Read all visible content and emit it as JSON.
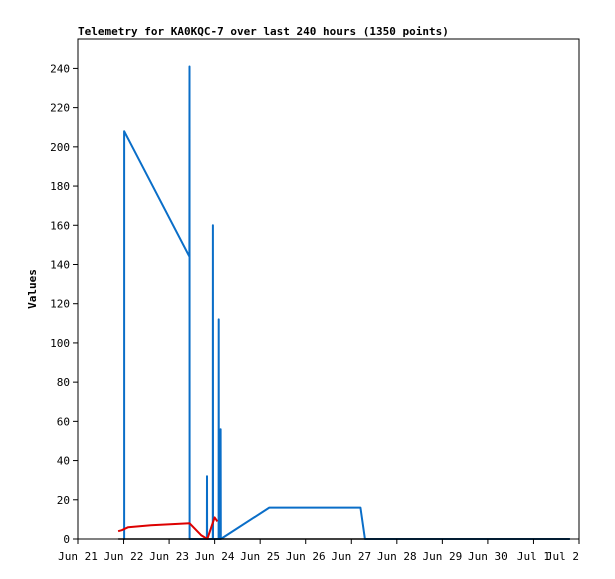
{
  "chart_data": {
    "type": "line",
    "title": "Telemetry for KA0KQC-7 over last 240 hours (1350 points)",
    "xlabel": "",
    "ylabel": "Values",
    "x_unit": "days (Jun 21 = 0)",
    "xlim": [
      "Jun 21",
      "Jul 2"
    ],
    "ylim": [
      0,
      255
    ],
    "x_tick_labels": [
      "Jun 21",
      "Jun 22",
      "Jun 23",
      "Jun 24",
      "Jun 25",
      "Jun 26",
      "Jun 27",
      "Jun 28",
      "Jun 29",
      "Jun 30",
      "Jul 1",
      "Jul 2"
    ],
    "y_ticks": [
      0,
      20,
      40,
      60,
      80,
      100,
      120,
      140,
      160,
      180,
      200,
      220,
      240
    ],
    "grid": false,
    "legend": "none",
    "series": [
      {
        "color": "#0a6ec8",
        "points": [
          [
            "Jun 22 00:00",
            0
          ],
          [
            "Jun 22 00:16",
            0
          ],
          [
            "Jun 22 00:19",
            208
          ],
          [
            "Jun 23 10:43",
            144
          ],
          [
            "Jun 23 10:46",
            241
          ],
          [
            "Jun 23 10:50",
            0
          ],
          [
            "Jun 23 19:55",
            0
          ],
          [
            "Jun 23 19:58",
            32
          ],
          [
            "Jun 23 20:02",
            0
          ],
          [
            "Jun 23 23:02",
            0
          ],
          [
            "Jun 23 23:05",
            160
          ],
          [
            "Jun 23 23:08",
            0
          ],
          [
            "Jun 24 02:05",
            0
          ],
          [
            "Jun 24 02:08",
            112
          ],
          [
            "Jun 24 02:12",
            0
          ],
          [
            "Jun 24 03:07",
            0
          ],
          [
            "Jun 24 03:10",
            56
          ],
          [
            "Jun 24 03:14",
            0
          ],
          [
            "Jun 25 04:48",
            16
          ],
          [
            "Jun 27 04:48",
            16
          ],
          [
            "Jun 27 07:12",
            0
          ],
          [
            "Jul 1 19:12",
            0
          ]
        ]
      },
      {
        "color": "#dd0000",
        "points": [
          [
            "Jun 21 21:07",
            4
          ],
          [
            "Jun 21 23:02",
            4.5
          ],
          [
            "Jun 22 02:24",
            6
          ],
          [
            "Jun 22 14:24",
            7
          ],
          [
            "Jun 23 10:48",
            8
          ],
          [
            "Jun 23 16:48",
            2
          ],
          [
            "Jun 23 20:09",
            0
          ],
          [
            "Jun 24 00:00",
            11
          ],
          [
            "Jun 24 01:26",
            9
          ]
        ]
      },
      {
        "color": "#000000",
        "points": [
          [
            "Jun 21 21:07",
            0
          ],
          [
            "Jul 1 19:12",
            0
          ]
        ]
      }
    ]
  }
}
